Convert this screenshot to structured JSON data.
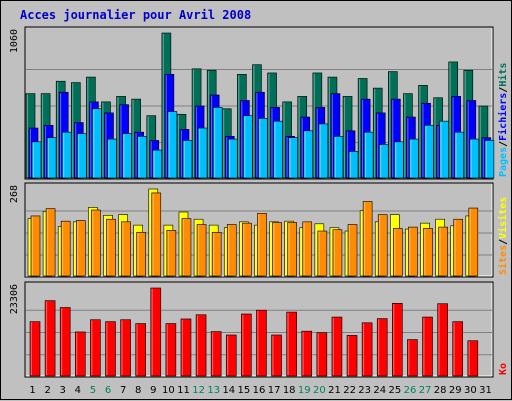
{
  "chart_data": {
    "type": "bar",
    "title": "Acces journalier pour Avril 2008",
    "categories": [
      "1",
      "2",
      "3",
      "4",
      "5",
      "6",
      "7",
      "8",
      "9",
      "10",
      "11",
      "12",
      "13",
      "14",
      "15",
      "16",
      "17",
      "18",
      "19",
      "20",
      "21",
      "22",
      "23",
      "24",
      "25",
      "26",
      "27",
      "28",
      "29",
      "30",
      "31"
    ],
    "weekend_days": [
      "5",
      "6",
      "12",
      "13",
      "19",
      "20",
      "26",
      "27"
    ],
    "panels": [
      {
        "max_label": "1060",
        "ymax": 1060,
        "legend": [
          "Pages",
          "Fichiers",
          "Hits"
        ],
        "series": [
          {
            "name": "Hits",
            "color": "#006f57",
            "values": [
              620,
              620,
              710,
              700,
              740,
              560,
              600,
              580,
              460,
              1060,
              470,
              800,
              790,
              510,
              760,
              830,
              770,
              560,
              600,
              770,
              740,
              600,
              730,
              660,
              780,
              620,
              680,
              590,
              850,
              790,
              530
            ]
          },
          {
            "name": "Fichiers",
            "color": "#0000ff",
            "values": [
              370,
              390,
              630,
              410,
              560,
              480,
              540,
              340,
              280,
              760,
              360,
              530,
              610,
              310,
              570,
              630,
              520,
              310,
              450,
              520,
              620,
              350,
              580,
              480,
              580,
              450,
              550,
              390,
              600,
              570,
              300
            ]
          },
          {
            "name": "Pages",
            "color": "#00bfff",
            "values": [
              270,
              300,
              340,
              330,
              510,
              290,
              330,
              310,
              210,
              490,
              280,
              370,
              520,
              290,
              460,
              440,
              420,
              300,
              350,
              400,
              310,
              200,
              340,
              250,
              270,
              290,
              390,
              420,
              340,
              290,
              280
            ]
          }
        ]
      },
      {
        "max_label": "268",
        "ymax": 268,
        "legend": [
          "Sites",
          "Visites"
        ],
        "series": [
          {
            "name": "Visites",
            "color": "#ffff00",
            "values": [
              178,
              200,
              154,
              168,
              212,
              188,
              190,
              158,
              268,
              158,
              198,
              176,
              158,
              150,
              168,
              158,
              168,
              170,
              150,
              162,
              150,
              140,
              202,
              168,
              190,
              146,
              164,
              176,
              156,
              186,
              0
            ]
          },
          {
            "name": "Sites",
            "color": "#ff8c00",
            "values": [
              186,
              208,
              170,
              172,
              204,
              176,
              168,
              136,
              256,
              142,
              178,
              160,
              136,
              160,
              164,
              194,
              166,
              166,
              168,
              140,
              144,
              160,
              230,
              190,
              148,
              152,
              148,
              152,
              176,
              210,
              0
            ]
          }
        ]
      },
      {
        "max_label": "23306",
        "ymax": 23306,
        "legend": [
          "Ko"
        ],
        "series": [
          {
            "name": "Ko",
            "color": "#ff0000",
            "values": [
              14500,
              20000,
              18200,
              11800,
              15000,
              14500,
              15000,
              14000,
              23306,
              14000,
              15200,
              16300,
              11900,
              11000,
              16500,
              17500,
              11000,
              17000,
              12000,
              11600,
              15700,
              10900,
              14200,
              15300,
              19300,
              9800,
              15700,
              19200,
              14500,
              9500,
              0
            ]
          }
        ]
      }
    ]
  }
}
